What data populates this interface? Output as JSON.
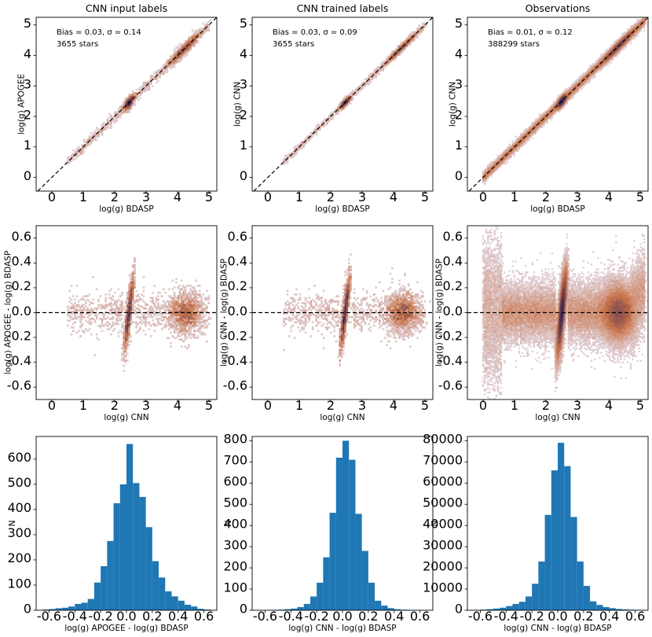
{
  "figure": {
    "colors": {
      "hist_bar": "#1f77b4",
      "density_low": "#e3dbe7",
      "density_mid": "#c9744a",
      "density_high": "#2d1e57",
      "reference_line": "#000000"
    }
  },
  "chart_data": [
    {
      "id": "density-apogee-vs-bdasp",
      "type": "heatmap",
      "title": "CNN input labels",
      "xlabel": "log(g) BDASP",
      "ylabel": "log(g) APOGEE",
      "xlim": [
        -0.5,
        5.25
      ],
      "ylim": [
        -0.45,
        5.25
      ],
      "xticks": [
        0,
        1,
        2,
        3,
        4,
        5
      ],
      "yticks": [
        0,
        1,
        2,
        3,
        4,
        5
      ],
      "reference_line": "y = x",
      "annotation": [
        "Bias = 0.03, σ = 0.14",
        "3655 stars"
      ],
      "scatter_sigma": 0.14,
      "density_peaks": [
        2.45,
        4.2
      ]
    },
    {
      "id": "density-cnn-vs-bdasp-trained",
      "type": "heatmap",
      "title": "CNN trained labels",
      "xlabel": "log(g) BDASP",
      "ylabel": "log(g) CNN",
      "xlim": [
        -0.5,
        5.25
      ],
      "ylim": [
        -0.45,
        5.25
      ],
      "xticks": [
        0,
        1,
        2,
        3,
        4,
        5
      ],
      "yticks": [
        0,
        1,
        2,
        3,
        4,
        5
      ],
      "reference_line": "y = x",
      "annotation": [
        "Bias = 0.03, σ = 0.09",
        "3655 stars"
      ],
      "scatter_sigma": 0.09,
      "density_peaks": [
        2.45,
        4.25
      ]
    },
    {
      "id": "density-cnn-vs-bdasp-obs",
      "type": "heatmap",
      "title": "Observations",
      "xlabel": "log(g) BDASP",
      "ylabel": "log(g) CNN",
      "xlim": [
        -0.5,
        5.25
      ],
      "ylim": [
        -0.45,
        5.25
      ],
      "xticks": [
        0,
        1,
        2,
        3,
        4,
        5
      ],
      "yticks": [
        0,
        1,
        2,
        3,
        4,
        5
      ],
      "reference_line": "y = x",
      "annotation": [
        "Bias = 0.01, σ = 0.12",
        "388299 stars"
      ],
      "scatter_sigma": 0.12,
      "density_peaks": [
        2.5,
        4.3
      ]
    },
    {
      "id": "residual-apogee",
      "type": "heatmap",
      "title": "",
      "xlabel": "log(g) CNN",
      "ylabel": "log(g) APOGEE - log(g) BDASP",
      "xlim": [
        -0.5,
        5.25
      ],
      "ylim": [
        -0.7,
        0.7
      ],
      "xticks": [
        0,
        1,
        2,
        3,
        4,
        5
      ],
      "yticks": [
        -0.6,
        -0.4,
        -0.2,
        0.0,
        0.2,
        0.4,
        0.6
      ],
      "reference_line": "y = 0",
      "density_peaks": [
        2.45,
        4.25
      ]
    },
    {
      "id": "residual-cnn-trained",
      "type": "heatmap",
      "title": "",
      "xlabel": "log(g) CNN",
      "ylabel": "log(g) CNN - log(g) BDASP",
      "xlim": [
        -0.5,
        5.25
      ],
      "ylim": [
        -0.7,
        0.7
      ],
      "xticks": [
        0,
        1,
        2,
        3,
        4,
        5
      ],
      "yticks": [
        -0.6,
        -0.4,
        -0.2,
        0.0,
        0.2,
        0.4,
        0.6
      ],
      "reference_line": "y = 0",
      "density_peaks": [
        2.45,
        4.3
      ]
    },
    {
      "id": "residual-cnn-obs",
      "type": "heatmap",
      "title": "",
      "xlabel": "log(g) CNN",
      "ylabel": "log(g) CNN - log(g) BDASP",
      "xlim": [
        -0.5,
        5.25
      ],
      "ylim": [
        -0.7,
        0.7
      ],
      "xticks": [
        0,
        1,
        2,
        3,
        4,
        5
      ],
      "yticks": [
        -0.6,
        -0.4,
        -0.2,
        0.0,
        0.2,
        0.4,
        0.6
      ],
      "reference_line": "y = 0",
      "density_peaks": [
        2.5,
        4.3
      ]
    },
    {
      "id": "hist-apogee",
      "type": "bar",
      "title": "",
      "xlabel": "log(g) APOGEE - log(g) BDASP",
      "ylabel": "N",
      "xlim": [
        -0.7,
        0.7
      ],
      "ylim": [
        0,
        690
      ],
      "xticks": [
        -0.6,
        -0.4,
        -0.2,
        0.0,
        0.2,
        0.4,
        0.6
      ],
      "yticks": [
        0,
        100,
        200,
        300,
        400,
        500,
        600
      ],
      "bin_edges": [
        -0.7,
        -0.65,
        -0.6,
        -0.55,
        -0.5,
        -0.45,
        -0.4,
        -0.35,
        -0.3,
        -0.25,
        -0.2,
        -0.15,
        -0.1,
        -0.05,
        0.0,
        0.05,
        0.1,
        0.15,
        0.2,
        0.25,
        0.3,
        0.35,
        0.4,
        0.45,
        0.5,
        0.55,
        0.6,
        0.65,
        0.7
      ],
      "values": [
        0,
        3,
        5,
        8,
        10,
        15,
        25,
        30,
        45,
        110,
        175,
        275,
        425,
        500,
        660,
        505,
        450,
        330,
        195,
        130,
        75,
        55,
        38,
        22,
        15,
        6,
        3,
        1
      ]
    },
    {
      "id": "hist-cnn-trained",
      "type": "bar",
      "title": "",
      "xlabel": "log(g) CNN - log(g) BDASP",
      "ylabel": "N",
      "xlim": [
        -0.7,
        0.7
      ],
      "ylim": [
        0,
        820
      ],
      "xticks": [
        -0.6,
        -0.4,
        -0.2,
        0.0,
        0.2,
        0.4,
        0.6
      ],
      "yticks": [
        0,
        100,
        200,
        300,
        400,
        500,
        600,
        700,
        800
      ],
      "bin_edges": [
        -0.7,
        -0.65,
        -0.6,
        -0.55,
        -0.5,
        -0.45,
        -0.4,
        -0.35,
        -0.3,
        -0.25,
        -0.2,
        -0.15,
        -0.1,
        -0.05,
        0.0,
        0.05,
        0.1,
        0.15,
        0.2,
        0.25,
        0.3,
        0.35,
        0.4,
        0.45,
        0.5,
        0.55,
        0.6,
        0.65,
        0.7
      ],
      "values": [
        0,
        0,
        1,
        2,
        3,
        5,
        8,
        15,
        30,
        65,
        130,
        250,
        460,
        720,
        800,
        710,
        455,
        280,
        130,
        45,
        22,
        10,
        5,
        3,
        2,
        1,
        0,
        0
      ]
    },
    {
      "id": "hist-cnn-obs",
      "type": "bar",
      "title": "",
      "xlabel": "log(g) CNN - log(g) BDASP",
      "ylabel": "N",
      "xlim": [
        -0.7,
        0.7
      ],
      "ylim": [
        0,
        82000
      ],
      "xticks": [
        -0.6,
        -0.4,
        -0.2,
        0.0,
        0.2,
        0.4,
        0.6
      ],
      "yticks": [
        0,
        10000,
        20000,
        30000,
        40000,
        50000,
        60000,
        70000,
        80000
      ],
      "bin_edges": [
        -0.7,
        -0.65,
        -0.6,
        -0.55,
        -0.5,
        -0.45,
        -0.4,
        -0.35,
        -0.3,
        -0.25,
        -0.2,
        -0.15,
        -0.1,
        -0.05,
        0.0,
        0.05,
        0.1,
        0.15,
        0.2,
        0.25,
        0.3,
        0.35,
        0.4,
        0.45,
        0.5,
        0.55,
        0.6,
        0.65,
        0.7
      ],
      "values": [
        100,
        200,
        300,
        500,
        800,
        1200,
        2000,
        3000,
        4000,
        6500,
        12500,
        23000,
        45000,
        66000,
        79000,
        68000,
        44000,
        23000,
        11500,
        4200,
        2500,
        1500,
        1000,
        600,
        400,
        250,
        150,
        100
      ]
    }
  ]
}
